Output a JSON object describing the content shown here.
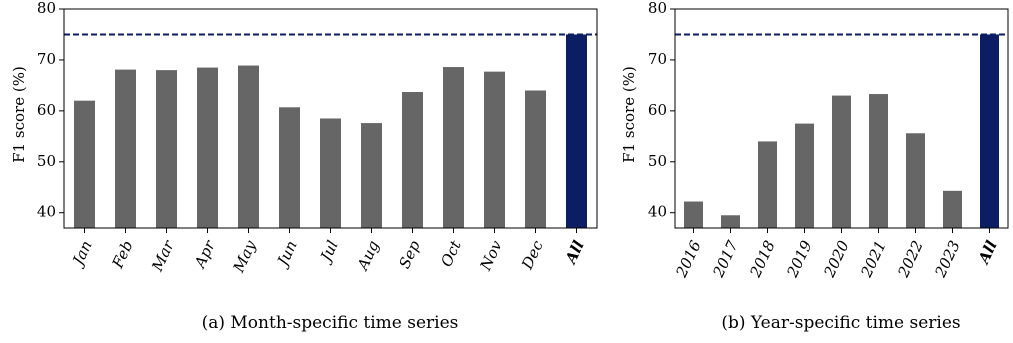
{
  "chart_data": [
    {
      "type": "bar",
      "caption": "(a) Month-specific time series",
      "ylabel": "F1 score (%)",
      "ylim": [
        37,
        80
      ],
      "yticks": [
        40,
        50,
        60,
        70,
        80
      ],
      "categories": [
        "Jan",
        "Feb",
        "Mar",
        "Apr",
        "May",
        "Jun",
        "Jul",
        "Aug",
        "Sep",
        "Oct",
        "Nov",
        "Dec",
        "All"
      ],
      "values": [
        62,
        68.1,
        68,
        68.5,
        68.9,
        60.7,
        58.5,
        57.6,
        63.7,
        68.6,
        67.7,
        64,
        75
      ],
      "highlight_index": 12,
      "reference_line": 75,
      "grid": false
    },
    {
      "type": "bar",
      "caption": "(b) Year-specific time series",
      "ylabel": "F1 score (%)",
      "ylim": [
        37,
        80
      ],
      "yticks": [
        40,
        50,
        60,
        70,
        80
      ],
      "categories": [
        "2016",
        "2017",
        "2018",
        "2019",
        "2020",
        "2021",
        "2022",
        "2023",
        "All"
      ],
      "values": [
        42.2,
        39.5,
        54,
        57.5,
        63,
        63.3,
        55.6,
        44.3,
        75
      ],
      "highlight_index": 8,
      "reference_line": 75,
      "grid": false
    }
  ],
  "colors": {
    "bar": "#666666",
    "highlight": "#0b1d63",
    "reference_line": "#0b1d63",
    "axis": "#000000"
  }
}
